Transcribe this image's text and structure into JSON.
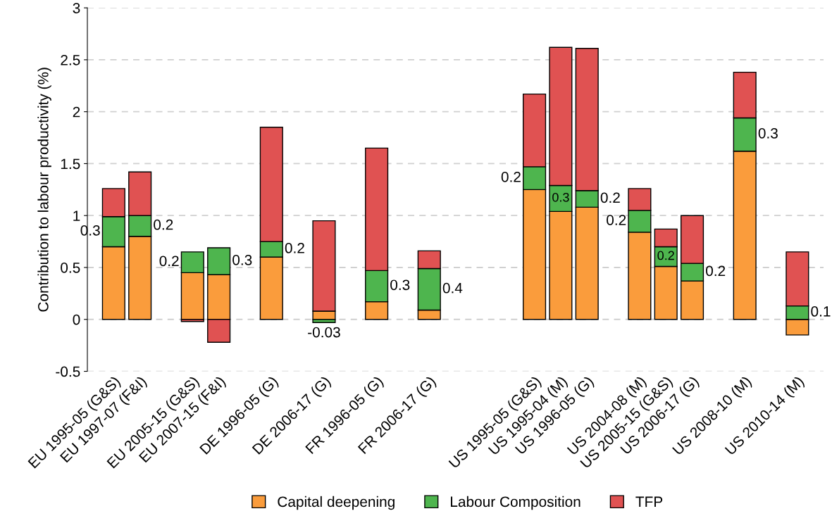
{
  "chart_data": {
    "type": "bar",
    "stacked": true,
    "ylabel": "Contribution to labour productivity (%)",
    "categories": [
      "EU 1995-05 (G&S)",
      "EU 1997-07 (F&I)",
      null,
      "EU 2005-15 (G&S)",
      "EU 2007-15 (F&I)",
      null,
      "DE 1996-05 (G)",
      null,
      "DE 2006-17 (G)",
      null,
      "FR 1996-05 (G)",
      null,
      "FR 2006-17 (G)",
      null,
      null,
      null,
      "US 1995-05 (G&S)",
      "US 1995-04 (M)",
      "US 1996-05 (G)",
      null,
      "US 2004-08 (M)",
      "US 2005-15 (G&S)",
      "US 2006-17 (G)",
      null,
      "US 2008-10 (M)",
      null,
      "US 2010-14 (M)"
    ],
    "series": [
      {
        "name": "Capital deepening",
        "color": "#fa9c3c",
        "values": [
          0.7,
          0.8,
          null,
          0.45,
          0.43,
          null,
          0.6,
          null,
          0.08,
          null,
          0.17,
          null,
          0.09,
          null,
          null,
          null,
          1.25,
          1.04,
          1.08,
          null,
          0.84,
          0.51,
          0.37,
          null,
          1.62,
          null,
          -0.15
        ]
      },
      {
        "name": "Labour Composition",
        "color": "#4eb54e",
        "values": [
          0.29,
          0.2,
          null,
          0.2,
          0.26,
          null,
          0.15,
          null,
          -0.03,
          null,
          0.3,
          null,
          0.4,
          null,
          null,
          null,
          0.22,
          0.25,
          0.16,
          null,
          0.21,
          0.19,
          0.17,
          null,
          0.32,
          null,
          0.13
        ],
        "value_labels": [
          "0.3",
          "0.2",
          null,
          "0.2",
          "0.3",
          null,
          "0.2",
          null,
          "-0.03",
          null,
          "0.3",
          null,
          "0.4",
          null,
          null,
          null,
          "0.2",
          "0.3",
          "0.2",
          null,
          "0.2",
          "0.2",
          "0.2",
          null,
          "0.3",
          null,
          "0.1"
        ]
      },
      {
        "name": "TFP",
        "color": "#e05252",
        "values": [
          0.27,
          0.42,
          null,
          -0.02,
          -0.22,
          null,
          1.1,
          null,
          0.87,
          null,
          1.18,
          null,
          0.17,
          null,
          null,
          null,
          0.7,
          1.33,
          1.37,
          null,
          0.21,
          0.17,
          0.46,
          null,
          0.44,
          null,
          0.52
        ]
      }
    ],
    "ylim": [
      -0.5,
      3
    ],
    "yticks": [
      -0.5,
      0,
      0.5,
      1,
      1.5,
      2,
      2.5,
      3
    ],
    "grid": "y",
    "legend": "bottom"
  }
}
